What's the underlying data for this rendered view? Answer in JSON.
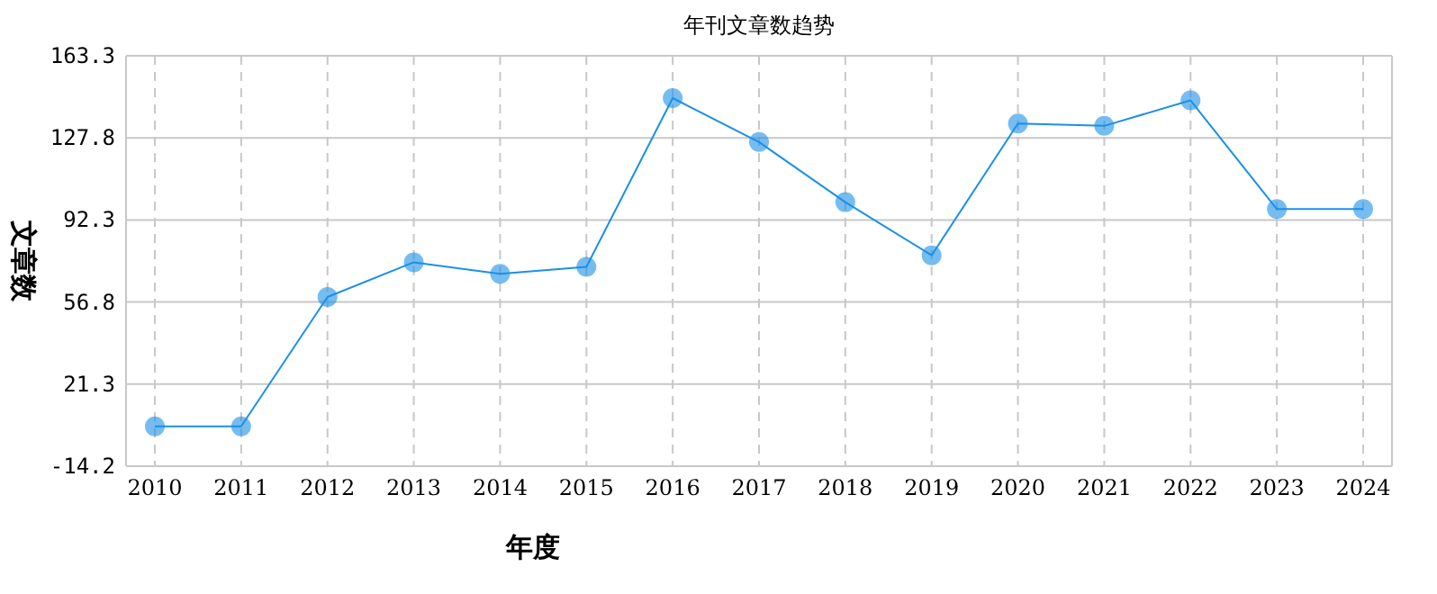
{
  "chart_data": {
    "type": "line",
    "title": "年刊文章数趋势",
    "xlabel": "年度",
    "ylabel": "文章数",
    "categories": [
      "2010",
      "2011",
      "2012",
      "2013",
      "2014",
      "2015",
      "2016",
      "2017",
      "2018",
      "2019",
      "2020",
      "2021",
      "2022",
      "2023",
      "2024"
    ],
    "series": [
      {
        "color": "#1a90e8",
        "values": [
          3,
          3,
          59,
          74,
          69,
          72,
          145,
          126,
          100,
          77,
          134,
          133,
          144,
          97,
          97
        ]
      }
    ],
    "ylim": [
      -14.2,
      163.3
    ],
    "yticks": [
      -14.2,
      21.3,
      56.8,
      92.3,
      127.8,
      163.3
    ],
    "grid": true,
    "marker": "circle",
    "line_style": "solid"
  }
}
